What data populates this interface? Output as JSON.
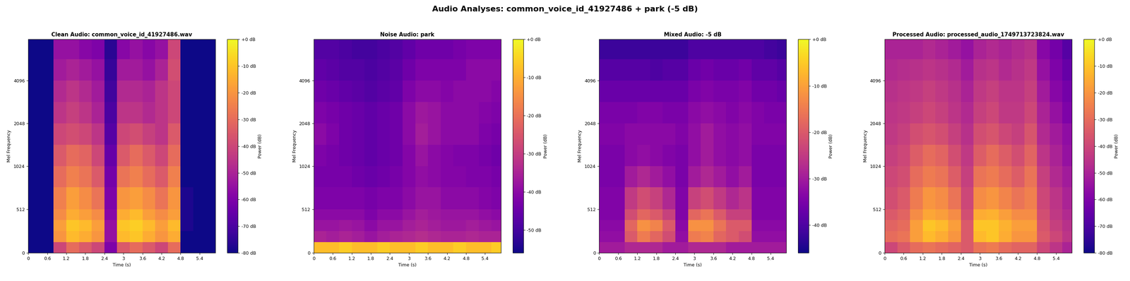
{
  "title": "Audio Analyses: common_voice_id_41927486 + park (-5 dB)",
  "chart_data": [
    {
      "type": "heatmap",
      "title": "Clean Audio: common_voice_id_41927486.wav",
      "x_label": "Time (s)",
      "y_label": "Mel Frequency",
      "color": "plasma",
      "time_edges": [
        0,
        0.4,
        0.8,
        1.2,
        1.6,
        2.0,
        2.4,
        2.8,
        3.2,
        3.6,
        4.0,
        4.4,
        4.8,
        5.2,
        5.6,
        5.9
      ],
      "freq_edges": [
        0,
        128,
        256,
        384,
        512,
        768,
        1024,
        1448,
        2048,
        2896,
        4096,
        5793,
        8000
      ],
      "cells": [
        [
          -80,
          -80,
          -40,
          -30,
          -35,
          -40,
          -60,
          -35,
          -30,
          -35,
          -40,
          -30,
          -80,
          -80,
          -80
        ],
        [
          -80,
          -80,
          -20,
          -12,
          -15,
          -20,
          -55,
          -12,
          -10,
          -15,
          -20,
          -15,
          -80,
          -80,
          -80
        ],
        [
          -80,
          -80,
          -18,
          -10,
          -12,
          -18,
          -55,
          -10,
          -8,
          -12,
          -18,
          -12,
          -78,
          -80,
          -80
        ],
        [
          -80,
          -80,
          -22,
          -15,
          -18,
          -22,
          -58,
          -15,
          -12,
          -18,
          -22,
          -18,
          -78,
          -80,
          -80
        ],
        [
          -80,
          -80,
          -25,
          -18,
          -22,
          -28,
          -60,
          -20,
          -18,
          -22,
          -28,
          -20,
          -78,
          -80,
          -80
        ],
        [
          -80,
          -80,
          -30,
          -25,
          -28,
          -35,
          -62,
          -28,
          -25,
          -30,
          -35,
          -25,
          -80,
          -80,
          -80
        ],
        [
          -80,
          -80,
          -35,
          -30,
          -32,
          -40,
          -65,
          -35,
          -30,
          -35,
          -40,
          -30,
          -80,
          -80,
          -80
        ],
        [
          -80,
          -80,
          -40,
          -38,
          -40,
          -45,
          -68,
          -40,
          -38,
          -42,
          -45,
          -35,
          -80,
          -80,
          -80
        ],
        [
          -80,
          -80,
          -45,
          -42,
          -45,
          -50,
          -70,
          -45,
          -45,
          -48,
          -45,
          -40,
          -80,
          -80,
          -80
        ],
        [
          -80,
          -80,
          -48,
          -45,
          -48,
          -52,
          -72,
          -48,
          -48,
          -50,
          -45,
          -40,
          -80,
          -80,
          -80
        ],
        [
          -80,
          -80,
          -52,
          -50,
          -52,
          -55,
          -74,
          -52,
          -52,
          -55,
          -50,
          -38,
          -80,
          -80,
          -80
        ],
        [
          -80,
          -80,
          -55,
          -55,
          -58,
          -60,
          -76,
          -58,
          -55,
          -58,
          -55,
          -40,
          -80,
          -80,
          -80
        ]
      ],
      "xlim": [
        0,
        5.9
      ],
      "xticks": [
        0,
        0.6,
        1.2,
        1.8,
        2.4,
        3,
        3.6,
        4.2,
        4.8,
        5.4
      ],
      "ylim": [
        0,
        8000
      ],
      "yticks": [
        0,
        512,
        1024,
        2048,
        4096
      ],
      "colorbar": {
        "label": "Power (dB)",
        "range": [
          -80,
          0
        ],
        "ticks": [
          {
            "value": -80,
            "label": "-80 dB"
          },
          {
            "value": -70,
            "label": "-70 dB"
          },
          {
            "value": -60,
            "label": "-60 dB"
          },
          {
            "value": -50,
            "label": "-50 dB"
          },
          {
            "value": -40,
            "label": "-40 dB"
          },
          {
            "value": -30,
            "label": "-30 dB"
          },
          {
            "value": -20,
            "label": "-20 dB"
          },
          {
            "value": -10,
            "label": "-10 dB"
          },
          {
            "value": 0,
            "label": "+0 dB"
          }
        ]
      }
    },
    {
      "type": "heatmap",
      "title": "Noise Audio: park",
      "x_label": "Time (s)",
      "y_label": "Mel Frequency",
      "color": "plasma",
      "time_edges": [
        0,
        0.4,
        0.8,
        1.2,
        1.6,
        2.0,
        2.4,
        2.8,
        3.2,
        3.6,
        4.0,
        4.4,
        4.8,
        5.2,
        5.6,
        5.9
      ],
      "freq_edges": [
        0,
        128,
        256,
        384,
        512,
        768,
        1024,
        1448,
        2048,
        2896,
        4096,
        5793,
        8000
      ],
      "cells": [
        [
          -8,
          -8,
          -6,
          -8,
          -8,
          -6,
          -8,
          -8,
          -6,
          -8,
          -8,
          -6,
          -8,
          -8,
          -6
        ],
        [
          -35,
          -36,
          -35,
          -36,
          -38,
          -36,
          -35,
          -34,
          -33,
          -34,
          -35,
          -35,
          -34,
          -35,
          -35
        ],
        [
          -38,
          -38,
          -37,
          -38,
          -40,
          -38,
          -38,
          -36,
          -35,
          -36,
          -37,
          -37,
          -36,
          -37,
          -38
        ],
        [
          -40,
          -40,
          -40,
          -40,
          -42,
          -40,
          -40,
          -38,
          -36,
          -37,
          -38,
          -38,
          -38,
          -39,
          -40
        ],
        [
          -42,
          -42,
          -42,
          -42,
          -43,
          -42,
          -42,
          -40,
          -38,
          -38,
          -40,
          -40,
          -40,
          -41,
          -42
        ],
        [
          -43,
          -43,
          -43,
          -44,
          -45,
          -44,
          -43,
          -41,
          -39,
          -40,
          -41,
          -41,
          -42,
          -42,
          -43
        ],
        [
          -42,
          -43,
          -44,
          -45,
          -46,
          -45,
          -44,
          -41,
          -38,
          -40,
          -41,
          -42,
          -42,
          -43,
          -44
        ],
        [
          -40,
          -42,
          -44,
          -45,
          -46,
          -45,
          -44,
          -40,
          -36,
          -38,
          -40,
          -40,
          -40,
          -42,
          -43
        ],
        [
          -42,
          -43,
          -44,
          -45,
          -46,
          -45,
          -44,
          -40,
          -37,
          -38,
          -40,
          -40,
          -40,
          -41,
          -42
        ],
        [
          -44,
          -45,
          -46,
          -47,
          -48,
          -47,
          -46,
          -42,
          -40,
          -40,
          -41,
          -40,
          -40,
          -40,
          -41
        ],
        [
          -46,
          -47,
          -48,
          -48,
          -49,
          -48,
          -47,
          -44,
          -42,
          -42,
          -42,
          -42,
          -40,
          -40,
          -40
        ],
        [
          -48,
          -48,
          -49,
          -50,
          -50,
          -49,
          -48,
          -46,
          -44,
          -44,
          -44,
          -43,
          -42,
          -42,
          -42
        ]
      ],
      "xlim": [
        0,
        5.9
      ],
      "xticks": [
        0,
        0.6,
        1.2,
        1.8,
        2.4,
        3,
        3.6,
        4.2,
        4.8,
        5.4
      ],
      "ylim": [
        0,
        8000
      ],
      "yticks": [
        0,
        512,
        1024,
        2048,
        4096
      ],
      "colorbar": {
        "label": "Power (dB)",
        "range": [
          -56,
          0
        ],
        "ticks": [
          {
            "value": -50,
            "label": "-50 dB"
          },
          {
            "value": -40,
            "label": "-40 dB"
          },
          {
            "value": -30,
            "label": "-30 dB"
          },
          {
            "value": -20,
            "label": "-20 dB"
          },
          {
            "value": -10,
            "label": "-10 dB"
          },
          {
            "value": 0,
            "label": "+0 dB"
          }
        ]
      }
    },
    {
      "type": "heatmap",
      "title": "Mixed Audio: -5 dB",
      "x_label": "Time (s)",
      "y_label": "Mel Frequency",
      "color": "plasma",
      "time_edges": [
        0,
        0.4,
        0.8,
        1.2,
        1.6,
        2.0,
        2.4,
        2.8,
        3.2,
        3.6,
        4.0,
        4.4,
        4.8,
        5.2,
        5.6,
        5.9
      ],
      "freq_edges": [
        0,
        128,
        256,
        384,
        512,
        768,
        1024,
        1448,
        2048,
        2896,
        4096,
        5793,
        8000
      ],
      "cells": [
        [
          -30,
          -30,
          -28,
          -28,
          -28,
          -30,
          -30,
          -28,
          -28,
          -28,
          -30,
          -30,
          -30,
          -30,
          -30
        ],
        [
          -32,
          -32,
          -20,
          -15,
          -18,
          -22,
          -32,
          -15,
          -14,
          -18,
          -20,
          -22,
          -32,
          -32,
          -32
        ],
        [
          -33,
          -33,
          -18,
          -12,
          -14,
          -20,
          -33,
          -12,
          -12,
          -16,
          -20,
          -20,
          -33,
          -33,
          -33
        ],
        [
          -34,
          -34,
          -22,
          -18,
          -20,
          -24,
          -34,
          -18,
          -16,
          -20,
          -24,
          -24,
          -34,
          -34,
          -34
        ],
        [
          -34,
          -34,
          -25,
          -22,
          -24,
          -28,
          -34,
          -24,
          -22,
          -25,
          -28,
          -26,
          -34,
          -34,
          -34
        ],
        [
          -35,
          -35,
          -30,
          -28,
          -30,
          -32,
          -35,
          -30,
          -28,
          -30,
          -32,
          -30,
          -35,
          -35,
          -35
        ],
        [
          -35,
          -35,
          -33,
          -32,
          -33,
          -34,
          -35,
          -32,
          -30,
          -32,
          -33,
          -32,
          -35,
          -35,
          -35
        ],
        [
          -34,
          -34,
          -33,
          -33,
          -33,
          -33,
          -34,
          -32,
          -30,
          -32,
          -33,
          -32,
          -34,
          -34,
          -34
        ],
        [
          -35,
          -35,
          -35,
          -34,
          -34,
          -35,
          -35,
          -33,
          -32,
          -33,
          -34,
          -33,
          -34,
          -35,
          -35
        ],
        [
          -37,
          -37,
          -37,
          -37,
          -37,
          -37,
          -37,
          -35,
          -34,
          -35,
          -35,
          -34,
          -36,
          -36,
          -37
        ],
        [
          -39,
          -39,
          -39,
          -39,
          -40,
          -39,
          -39,
          -37,
          -36,
          -37,
          -37,
          -36,
          -38,
          -38,
          -39
        ],
        [
          -42,
          -42,
          -42,
          -42,
          -42,
          -42,
          -42,
          -40,
          -40,
          -40,
          -40,
          -40,
          -40,
          -41,
          -42
        ]
      ],
      "xlim": [
        0,
        5.9
      ],
      "xticks": [
        0,
        0.6,
        1.2,
        1.8,
        2.4,
        3,
        3.6,
        4.2,
        4.8,
        5.4
      ],
      "ylim": [
        0,
        8000
      ],
      "yticks": [
        0,
        512,
        1024,
        2048,
        4096
      ],
      "colorbar": {
        "label": "Power (dB)",
        "range": [
          -46,
          0
        ],
        "ticks": [
          {
            "value": -40,
            "label": "-40 dB"
          },
          {
            "value": -30,
            "label": "-30 dB"
          },
          {
            "value": -20,
            "label": "-20 dB"
          },
          {
            "value": -10,
            "label": "-10 dB"
          },
          {
            "value": 0,
            "label": "+0 dB"
          }
        ]
      }
    },
    {
      "type": "heatmap",
      "title": "Processed Audio: processed_audio_1749713723824.wav",
      "x_label": "Time (s)",
      "y_label": "Mel Frequency",
      "color": "plasma",
      "time_edges": [
        0,
        0.4,
        0.8,
        1.2,
        1.6,
        2.0,
        2.4,
        2.8,
        3.2,
        3.6,
        4.0,
        4.4,
        4.8,
        5.2,
        5.6,
        5.9
      ],
      "freq_edges": [
        0,
        128,
        256,
        384,
        512,
        768,
        1024,
        1448,
        2048,
        2896,
        4096,
        5793,
        8000
      ],
      "cells": [
        [
          -40,
          -35,
          -30,
          -28,
          -30,
          -32,
          -35,
          -28,
          -26,
          -30,
          -32,
          -32,
          -40,
          -45,
          -50
        ],
        [
          -30,
          -28,
          -18,
          -12,
          -15,
          -20,
          -35,
          -12,
          -10,
          -15,
          -20,
          -20,
          -35,
          -40,
          -45
        ],
        [
          -32,
          -30,
          -18,
          -10,
          -12,
          -18,
          -35,
          -10,
          -10,
          -14,
          -18,
          -18,
          -36,
          -42,
          -46
        ],
        [
          -35,
          -32,
          -22,
          -16,
          -18,
          -22,
          -38,
          -15,
          -14,
          -18,
          -22,
          -22,
          -38,
          -44,
          -48
        ],
        [
          -38,
          -35,
          -26,
          -20,
          -22,
          -28,
          -40,
          -22,
          -20,
          -24,
          -28,
          -25,
          -40,
          -45,
          -50
        ],
        [
          -40,
          -38,
          -30,
          -26,
          -28,
          -34,
          -42,
          -28,
          -26,
          -30,
          -34,
          -28,
          -42,
          -48,
          -52
        ],
        [
          -42,
          -40,
          -34,
          -30,
          -32,
          -38,
          -44,
          -34,
          -30,
          -34,
          -38,
          -32,
          -45,
          -50,
          -55
        ],
        [
          -44,
          -42,
          -38,
          -36,
          -38,
          -42,
          -46,
          -38,
          -36,
          -40,
          -42,
          -36,
          -48,
          -52,
          -56
        ],
        [
          -45,
          -44,
          -42,
          -40,
          -42,
          -45,
          -48,
          -42,
          -40,
          -44,
          -44,
          -40,
          -50,
          -55,
          -60
        ],
        [
          -46,
          -45,
          -44,
          -42,
          -44,
          -46,
          -50,
          -44,
          -42,
          -45,
          -45,
          -42,
          -52,
          -58,
          -62
        ],
        [
          -48,
          -47,
          -46,
          -45,
          -46,
          -48,
          -52,
          -46,
          -45,
          -48,
          -46,
          -44,
          -55,
          -60,
          -65
        ],
        [
          -50,
          -50,
          -50,
          -48,
          -50,
          -52,
          -55,
          -50,
          -48,
          -50,
          -48,
          -46,
          -58,
          -62,
          -68
        ]
      ],
      "xlim": [
        0,
        5.9
      ],
      "xticks": [
        0,
        0.6,
        1.2,
        1.8,
        2.4,
        3,
        3.6,
        4.2,
        4.8,
        5.4
      ],
      "ylim": [
        0,
        8000
      ],
      "yticks": [
        0,
        512,
        1024,
        2048,
        4096
      ],
      "colorbar": {
        "label": "Power (dB)",
        "range": [
          -80,
          0
        ],
        "ticks": [
          {
            "value": -80,
            "label": "-80 dB"
          },
          {
            "value": -70,
            "label": "-70 dB"
          },
          {
            "value": -60,
            "label": "-60 dB"
          },
          {
            "value": -50,
            "label": "-50 dB"
          },
          {
            "value": -40,
            "label": "-40 dB"
          },
          {
            "value": -30,
            "label": "-30 dB"
          },
          {
            "value": -20,
            "label": "-20 dB"
          },
          {
            "value": -10,
            "label": "-10 dB"
          },
          {
            "value": 0,
            "label": "+0 dB"
          }
        ]
      }
    }
  ]
}
